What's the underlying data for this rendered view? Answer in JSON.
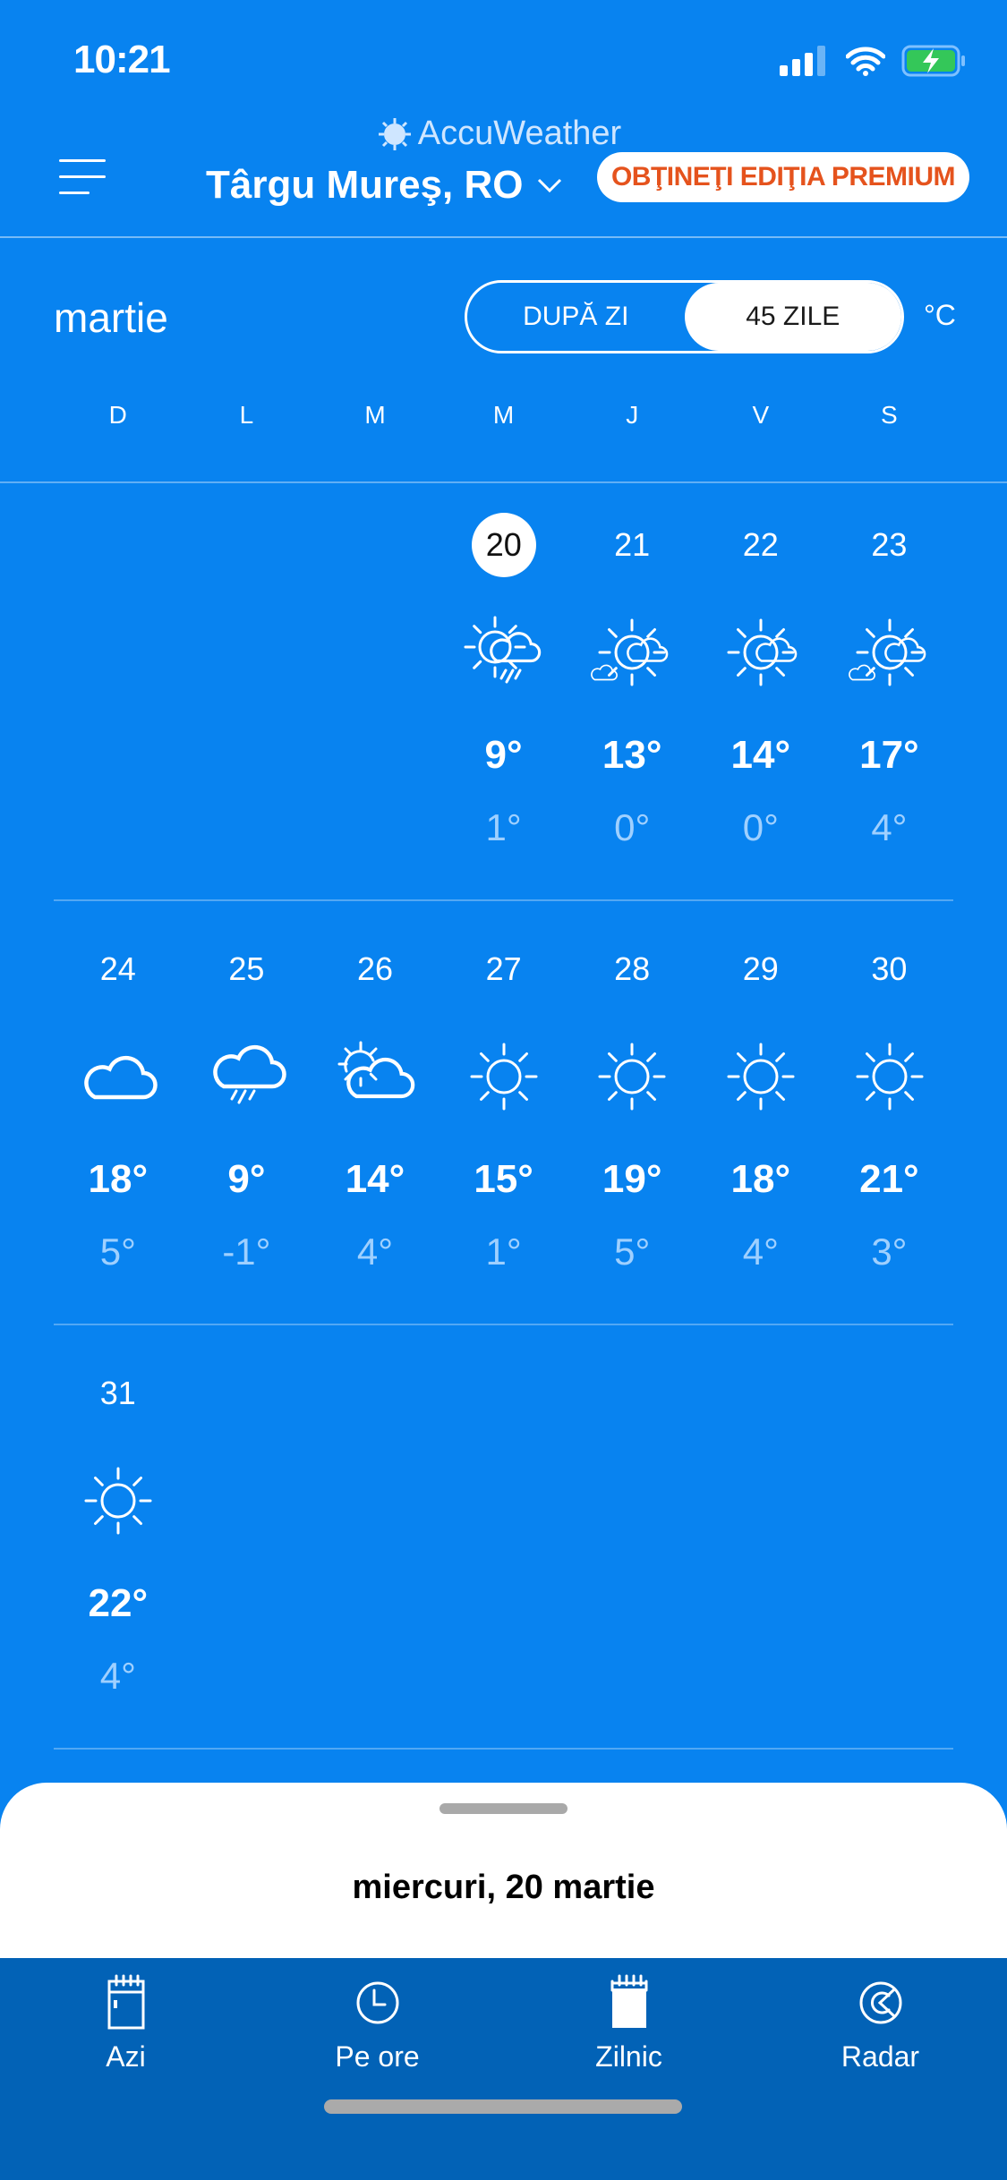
{
  "status": {
    "time": "10:21"
  },
  "header": {
    "logo": "AccuWeather",
    "city": "Târgu Mureş, RO",
    "premium_label": "OBŢINEŢI EDIŢIA PREMIUM"
  },
  "calendar": {
    "month": "martie",
    "toggle": [
      "DUPĂ ZI",
      "45 ZILE"
    ],
    "toggle_selected": "45 ZILE",
    "unit": "°C",
    "weekdays": [
      "D",
      "L",
      "M",
      "M",
      "J",
      "V",
      "S"
    ],
    "weeks": [
      [
        null,
        null,
        null,
        {
          "date": "20",
          "icon": "sun-cloud-rain",
          "hi": "9°",
          "lo": "1°",
          "today": true
        },
        {
          "date": "21",
          "icon": "sun-cloud-small",
          "hi": "13°",
          "lo": "0°"
        },
        {
          "date": "22",
          "icon": "sun-cloud",
          "hi": "14°",
          "lo": "0°"
        },
        {
          "date": "23",
          "icon": "sun-cloud-small",
          "hi": "17°",
          "lo": "4°"
        }
      ],
      [
        {
          "date": "24",
          "icon": "cloud",
          "hi": "18°",
          "lo": "5°"
        },
        {
          "date": "25",
          "icon": "cloud-rain",
          "hi": "9°",
          "lo": "-1°"
        },
        {
          "date": "26",
          "icon": "cloud-sun-behind",
          "hi": "14°",
          "lo": "4°"
        },
        {
          "date": "27",
          "icon": "sun",
          "hi": "15°",
          "lo": "1°"
        },
        {
          "date": "28",
          "icon": "sun",
          "hi": "19°",
          "lo": "5°"
        },
        {
          "date": "29",
          "icon": "sun",
          "hi": "18°",
          "lo": "4°"
        },
        {
          "date": "30",
          "icon": "sun",
          "hi": "21°",
          "lo": "3°"
        }
      ],
      [
        {
          "date": "31",
          "icon": "sun",
          "hi": "22°",
          "lo": "4°"
        }
      ]
    ]
  },
  "sheet": {
    "selected_date": "miercuri, 20 martie"
  },
  "nav": [
    {
      "label": "Azi",
      "icon": "calendar-today-icon"
    },
    {
      "label": "Pe ore",
      "icon": "clock-icon"
    },
    {
      "label": "Zilnic",
      "icon": "calendar-filled-icon",
      "active": true
    },
    {
      "label": "Radar",
      "icon": "radar-icon"
    }
  ],
  "colors": {
    "background": "#0883f0",
    "nav": "#0262b6",
    "premium_text": "#e5531d",
    "low_temp": "#9fd0ff"
  }
}
